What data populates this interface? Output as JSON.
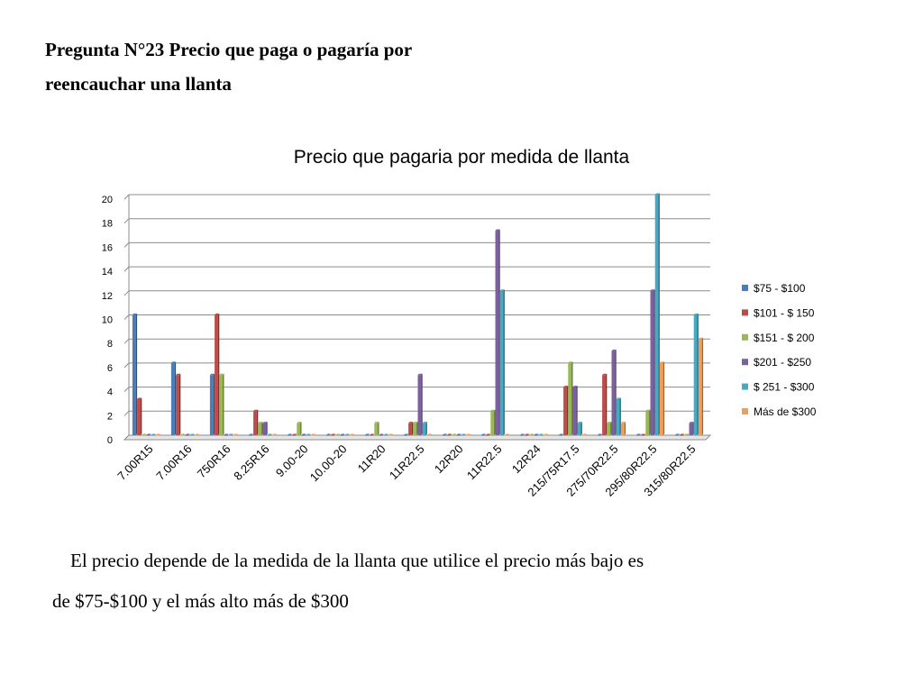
{
  "heading": {
    "line1": "Pregunta N°23 Precio que paga o pagaría por",
    "line2": "reencauchar una llanta"
  },
  "note": {
    "line1": "El precio depende de la medida de la llanta que utilice el precio más bajo es",
    "line2": "de $75-$100 y el más alto más de $300"
  },
  "chart_data": {
    "type": "bar",
    "title": "Precio que pagaria por medida de llanta",
    "xlabel": "",
    "ylabel": "",
    "ylim": [
      0,
      20
    ],
    "yticks": [
      0,
      2,
      4,
      6,
      8,
      10,
      12,
      14,
      16,
      18,
      20
    ],
    "grid": true,
    "legend_position": "right",
    "categories": [
      "7.00R15",
      "7.00R16",
      "750R16",
      "8.25R16",
      "9.00-20",
      "10.00-20",
      "11R20",
      "11R22.5",
      "12R20",
      "11R22.5",
      "12R24",
      "215/75R17.5",
      "275/70R22.5",
      "295/80R22.5",
      "315/80R22.5"
    ],
    "series": [
      {
        "name": "$75 - $100",
        "color": "#4a7ebb",
        "values": [
          10,
          6,
          5,
          0,
          0,
          0,
          0,
          0,
          0,
          0,
          0,
          0,
          0,
          0,
          0
        ]
      },
      {
        "name": "$101 - $ 150",
        "color": "#be4b48",
        "values": [
          3,
          5,
          10,
          2,
          0,
          0,
          0,
          1,
          0,
          0,
          0,
          4,
          5,
          0,
          0
        ]
      },
      {
        "name": "$151 - $ 200",
        "color": "#98b954",
        "values": [
          0,
          0,
          5,
          1,
          1,
          0,
          1,
          1,
          0,
          2,
          0,
          6,
          1,
          2,
          0
        ]
      },
      {
        "name": "$201 - $250",
        "color": "#7d60a0",
        "values": [
          0,
          0,
          0,
          1,
          0,
          0,
          0,
          5,
          0,
          17,
          0,
          4,
          7,
          12,
          1
        ]
      },
      {
        "name": "$ 251 - $300",
        "color": "#46aac5",
        "values": [
          0,
          0,
          0,
          0,
          0,
          0,
          0,
          1,
          0,
          12,
          0,
          1,
          3,
          20,
          10
        ]
      },
      {
        "name": "Más de $300",
        "color": "#f59d56",
        "values": [
          0,
          0,
          0,
          0,
          0,
          0,
          0,
          0,
          0,
          0,
          0,
          0,
          1,
          6,
          8
        ]
      }
    ]
  }
}
